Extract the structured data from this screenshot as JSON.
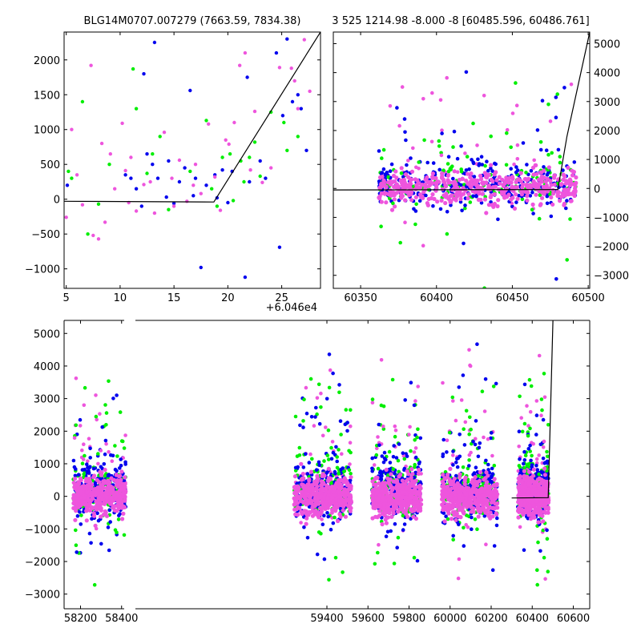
{
  "chart_data": [
    {
      "id": "tl",
      "type": "scatter",
      "title": "BLG14M0707.007279 (7663.59, 7834.38)",
      "offset_label": "+6.046e4",
      "xlim": [
        4.8,
        28.6
      ],
      "ylim": [
        -1280,
        2400
      ],
      "xticks": [
        5,
        10,
        15,
        20,
        25
      ],
      "yticks": [
        -1000,
        -500,
        0,
        500,
        1000,
        1500,
        2000
      ],
      "series": [
        {
          "color": "#0000ee",
          "points": [
            [
              5.1,
              200
            ],
            [
              10.5,
              350
            ],
            [
              11.5,
              150
            ],
            [
              12.2,
              1800
            ],
            [
              12.5,
              650
            ],
            [
              13.2,
              2250
            ],
            [
              13.5,
              300
            ],
            [
              14.3,
              30
            ],
            [
              15,
              -60
            ],
            [
              16.5,
              1560
            ],
            [
              17.5,
              -980
            ],
            [
              18.8,
              350
            ],
            [
              19.5,
              420
            ],
            [
              20.4,
              400
            ],
            [
              21.6,
              -1120
            ],
            [
              21.8,
              1750
            ],
            [
              23.5,
              300
            ],
            [
              24.5,
              2100
            ],
            [
              24.8,
              -690
            ],
            [
              25.1,
              1200
            ],
            [
              25.5,
              2300
            ],
            [
              26,
              1400
            ],
            [
              26.5,
              1500
            ],
            [
              27.3,
              700
            ],
            [
              26.8,
              1300
            ],
            [
              11,
              300
            ],
            [
              13,
              500
            ],
            [
              15.5,
              250
            ],
            [
              16,
              450
            ],
            [
              17,
              300
            ],
            [
              18,
              200
            ],
            [
              19,
              20
            ],
            [
              22,
              250
            ],
            [
              23,
              550
            ],
            [
              20,
              -50
            ],
            [
              14.5,
              550
            ],
            [
              16.8,
              50
            ],
            [
              12,
              -100
            ]
          ]
        },
        {
          "color": "#00ee00",
          "points": [
            [
              5.2,
              400
            ],
            [
              6.5,
              1400
            ],
            [
              8,
              -70
            ],
            [
              11.2,
              1870
            ],
            [
              11.5,
              1300
            ],
            [
              12.5,
              370
            ],
            [
              13.7,
              900
            ],
            [
              14.5,
              -150
            ],
            [
              18,
              1130
            ],
            [
              19.5,
              600
            ],
            [
              20.5,
              -20
            ],
            [
              21.2,
              550
            ],
            [
              22.5,
              820
            ],
            [
              23,
              330
            ],
            [
              25.5,
              700
            ],
            [
              26.5,
              900
            ],
            [
              25.2,
              1100
            ],
            [
              21.5,
              250
            ],
            [
              22,
              600
            ],
            [
              9,
              500
            ],
            [
              7,
              -500
            ],
            [
              16.5,
              400
            ],
            [
              19,
              -100
            ],
            [
              20.2,
              650
            ],
            [
              24,
              1250
            ],
            [
              5.5,
              300
            ],
            [
              13,
              650
            ],
            [
              18.5,
              150
            ]
          ]
        },
        {
          "color": "#ee55dd",
          "points": [
            [
              5,
              -260
            ],
            [
              5.5,
              1000
            ],
            [
              6.5,
              -80
            ],
            [
              7.3,
              1920
            ],
            [
              7.5,
              -520
            ],
            [
              8,
              -570
            ],
            [
              8.6,
              -330
            ],
            [
              9.1,
              650
            ],
            [
              10.2,
              1090
            ],
            [
              10.5,
              410
            ],
            [
              11.5,
              -170
            ],
            [
              12.2,
              210
            ],
            [
              13.2,
              -200
            ],
            [
              14.1,
              960
            ],
            [
              15.5,
              560
            ],
            [
              16.2,
              -30
            ],
            [
              17.5,
              80
            ],
            [
              18.2,
              1080
            ],
            [
              18.8,
              320
            ],
            [
              20.1,
              790
            ],
            [
              21.1,
              1920
            ],
            [
              21.6,
              2100
            ],
            [
              22.1,
              420
            ],
            [
              23.2,
              240
            ],
            [
              24.8,
              1890
            ],
            [
              25.9,
              1880
            ],
            [
              27.1,
              2290
            ],
            [
              27.6,
              1550
            ],
            [
              26.5,
              1300
            ],
            [
              6,
              350
            ],
            [
              8.3,
              800
            ],
            [
              9.5,
              150
            ],
            [
              10.8,
              -50
            ],
            [
              12.8,
              250
            ],
            [
              15,
              -100
            ],
            [
              16.8,
              200
            ],
            [
              19.3,
              -160
            ],
            [
              20.6,
              1100
            ],
            [
              22.5,
              1260
            ],
            [
              24,
              450
            ],
            [
              26.2,
              1700
            ],
            [
              11,
              600
            ],
            [
              14.8,
              300
            ],
            [
              17,
              500
            ],
            [
              19.8,
              850
            ]
          ]
        }
      ],
      "model_line": [
        [
          4.8,
          -30
        ],
        [
          18.7,
          -40
        ],
        [
          28.6,
          2400
        ]
      ]
    },
    {
      "id": "tr",
      "type": "scatter",
      "title": "3 525 1214.98 -8.000 -8 [60485.596, 60486.761]",
      "xlim": [
        60332,
        60501
      ],
      "ylim": [
        -3450,
        5400
      ],
      "xticks": [
        60350,
        60400,
        60450,
        60500
      ],
      "yticks": [
        -3000,
        -2000,
        -1000,
        0,
        1000,
        2000,
        3000,
        4000,
        5000
      ],
      "model_line": [
        [
          60332,
          -50
        ],
        [
          60480,
          -40
        ],
        [
          60486,
          1800
        ],
        [
          60501,
          5400
        ]
      ],
      "bands": [
        [
          60362,
          60492
        ]
      ]
    },
    {
      "id": "bottom",
      "type": "scatter",
      "xlim": [
        58120,
        60680
      ],
      "ylim": [
        -3450,
        5400
      ],
      "xticks": [
        58200,
        58400,
        59400,
        59600,
        59800,
        60000,
        60200,
        60400,
        60600
      ],
      "yticks": [
        -3000,
        -2000,
        -1000,
        0,
        1000,
        2000,
        3000,
        4000,
        5000
      ],
      "axis_break_x": 58440,
      "model_line": [
        [
          60300,
          -50
        ],
        [
          60478,
          -40
        ],
        [
          60501,
          5400
        ]
      ],
      "bands": [
        [
          58165,
          58420
        ],
        [
          59240,
          59520
        ],
        [
          59620,
          59860
        ],
        [
          59960,
          60230
        ],
        [
          60330,
          60480
        ]
      ]
    }
  ],
  "colors": {
    "blue": "#0000ee",
    "green": "#00ee00",
    "magenta": "#ee55dd"
  }
}
